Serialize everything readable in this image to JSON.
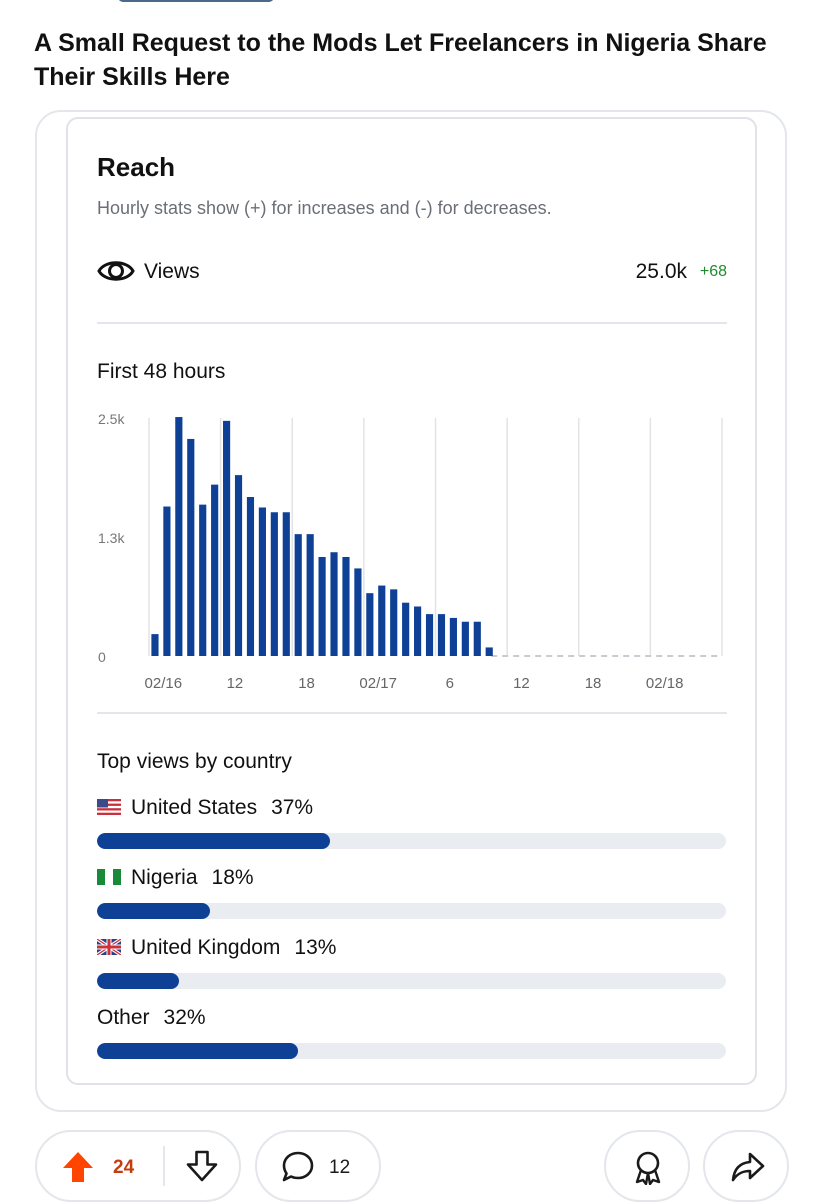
{
  "post": {
    "title": "A Small Request to the Mods Let Freelancers in Nigeria Share Their Skills Here"
  },
  "reach": {
    "title": "Reach",
    "subtitle": "Hourly stats show (+) for increases and (-) for decreases.",
    "views_label": "Views",
    "views_value": "25.0k",
    "views_delta": "+68",
    "eye_icon": "eye-icon"
  },
  "chart_data": {
    "type": "bar",
    "title": "First 48 hours",
    "xlabel": "",
    "ylabel": "",
    "ylim": [
      0,
      2500
    ],
    "y_ticks": [
      "0",
      "1.3k",
      "2.5k"
    ],
    "x_ticks": [
      "02/16",
      "12",
      "18",
      "02/17",
      "6",
      "12",
      "18",
      "02/18"
    ],
    "bar_color": "#0e4196",
    "grid": true,
    "values": [
      230,
      1570,
      2510,
      2280,
      1590,
      1800,
      2470,
      1900,
      1670,
      1560,
      1510,
      1510,
      1280,
      1280,
      1040,
      1090,
      1040,
      920,
      660,
      740,
      700,
      560,
      520,
      440,
      440,
      400,
      360,
      360,
      90
    ]
  },
  "countries": {
    "title": "Top views by country",
    "items": [
      {
        "name": "United States",
        "pct": "37%",
        "value": 37,
        "flag": "us-flag-icon"
      },
      {
        "name": "Nigeria",
        "pct": "18%",
        "value": 18,
        "flag": "ng-flag-icon"
      },
      {
        "name": "United Kingdom",
        "pct": "13%",
        "value": 13,
        "flag": "uk-flag-icon"
      },
      {
        "name": "Other",
        "pct": "32%",
        "value": 32,
        "flag": ""
      }
    ],
    "bar_color": "#0e4196",
    "track_color": "#e9ecf1"
  },
  "actions": {
    "upvote_count": "24",
    "comment_count": "12",
    "upvote_color": "#ff4500"
  }
}
